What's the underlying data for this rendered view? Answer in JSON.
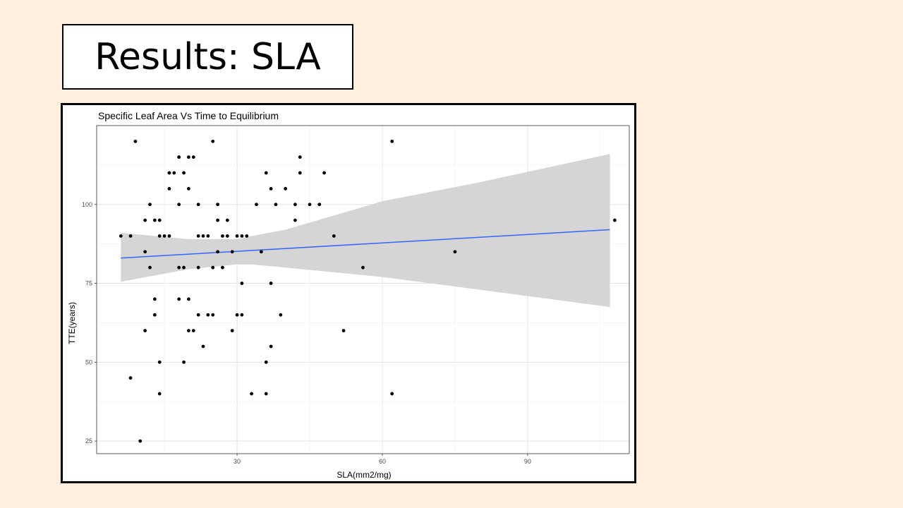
{
  "slide": {
    "title": "Results: SLA"
  },
  "chart_data": {
    "type": "scatter",
    "title": "Specific Leaf Area Vs Time to Equilibrium",
    "xlabel": "SLA(mm2/mg)",
    "ylabel": "TTE(years)",
    "xlim": [
      1,
      111
    ],
    "ylim": [
      21,
      125
    ],
    "xticks": [
      30,
      60,
      90
    ],
    "yticks": [
      25,
      50,
      75,
      100
    ],
    "grid": true,
    "points": [
      [
        6,
        90
      ],
      [
        8,
        90
      ],
      [
        8,
        45
      ],
      [
        9,
        120
      ],
      [
        10,
        25
      ],
      [
        11,
        85
      ],
      [
        11,
        60
      ],
      [
        11,
        95
      ],
      [
        12,
        100
      ],
      [
        12,
        80
      ],
      [
        13,
        70
      ],
      [
        13,
        65
      ],
      [
        13,
        95
      ],
      [
        14,
        95
      ],
      [
        14,
        90
      ],
      [
        14,
        50
      ],
      [
        14,
        40
      ],
      [
        15,
        90
      ],
      [
        16,
        90
      ],
      [
        16,
        110
      ],
      [
        16,
        105
      ],
      [
        17,
        110
      ],
      [
        18,
        70
      ],
      [
        18,
        80
      ],
      [
        18,
        115
      ],
      [
        18,
        115
      ],
      [
        18,
        100
      ],
      [
        19,
        110
      ],
      [
        19,
        80
      ],
      [
        19,
        50
      ],
      [
        20,
        115
      ],
      [
        20,
        70
      ],
      [
        20,
        105
      ],
      [
        20,
        60
      ],
      [
        21,
        115
      ],
      [
        21,
        60
      ],
      [
        22,
        80
      ],
      [
        22,
        65
      ],
      [
        22,
        90
      ],
      [
        22,
        100
      ],
      [
        23,
        90
      ],
      [
        23,
        55
      ],
      [
        24,
        90
      ],
      [
        24,
        65
      ],
      [
        25,
        120
      ],
      [
        25,
        80
      ],
      [
        25,
        65
      ],
      [
        26,
        95
      ],
      [
        26,
        85
      ],
      [
        26,
        100
      ],
      [
        27,
        90
      ],
      [
        27,
        80
      ],
      [
        28,
        90
      ],
      [
        28,
        95
      ],
      [
        29,
        85
      ],
      [
        29,
        60
      ],
      [
        30,
        65
      ],
      [
        30,
        90
      ],
      [
        31,
        75
      ],
      [
        31,
        90
      ],
      [
        31,
        65
      ],
      [
        32,
        90
      ],
      [
        33,
        40
      ],
      [
        34,
        100
      ],
      [
        35,
        85
      ],
      [
        36,
        110
      ],
      [
        36,
        50
      ],
      [
        36,
        40
      ],
      [
        37,
        75
      ],
      [
        37,
        55
      ],
      [
        37,
        105
      ],
      [
        38,
        100
      ],
      [
        39,
        65
      ],
      [
        40,
        105
      ],
      [
        42,
        95
      ],
      [
        42,
        100
      ],
      [
        43,
        115
      ],
      [
        43,
        110
      ],
      [
        45,
        100
      ],
      [
        47,
        100
      ],
      [
        48,
        110
      ],
      [
        50,
        90
      ],
      [
        52,
        60
      ],
      [
        56,
        80
      ],
      [
        62,
        120
      ],
      [
        62,
        40
      ],
      [
        75,
        85
      ],
      [
        108,
        95
      ]
    ],
    "fit_line": {
      "x": [
        6,
        107
      ],
      "y": [
        83,
        92
      ],
      "color": "#3366FF"
    },
    "confidence_band": {
      "x": [
        6,
        20,
        30,
        33,
        40,
        60,
        80,
        107
      ],
      "upper": [
        91,
        89,
        89,
        90,
        92,
        101,
        107,
        116
      ],
      "lower": [
        75.5,
        79.5,
        81,
        81,
        80,
        77,
        73,
        67.5
      ],
      "color": "#D3D3D3"
    }
  }
}
